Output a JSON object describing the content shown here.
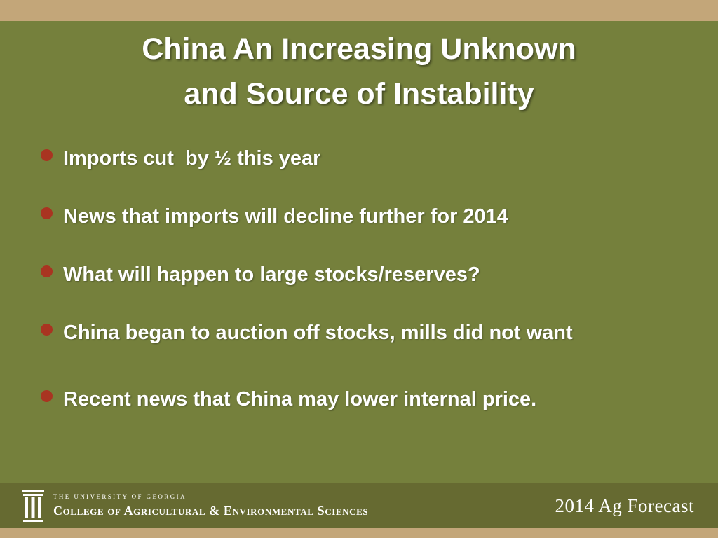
{
  "colors": {
    "top_bar": "#c3a679",
    "background": "#75803c",
    "footer_band": "#666a31",
    "bullet": "#a93421",
    "text": "#ffffff"
  },
  "title": {
    "line1": "China An Increasing Unknown",
    "line2": "and Source of Instability"
  },
  "bullets": [
    "Imports cut  by ½ this year",
    "News that imports will decline further for 2014",
    "What will happen to large stocks/reserves?",
    "China began to auction off stocks, mills did not want",
    "Recent news that China may lower internal price."
  ],
  "footer": {
    "university": "The University of Georgia",
    "college": "College of Agricultural & Environmental Sciences",
    "event": "2014 Ag Forecast"
  }
}
